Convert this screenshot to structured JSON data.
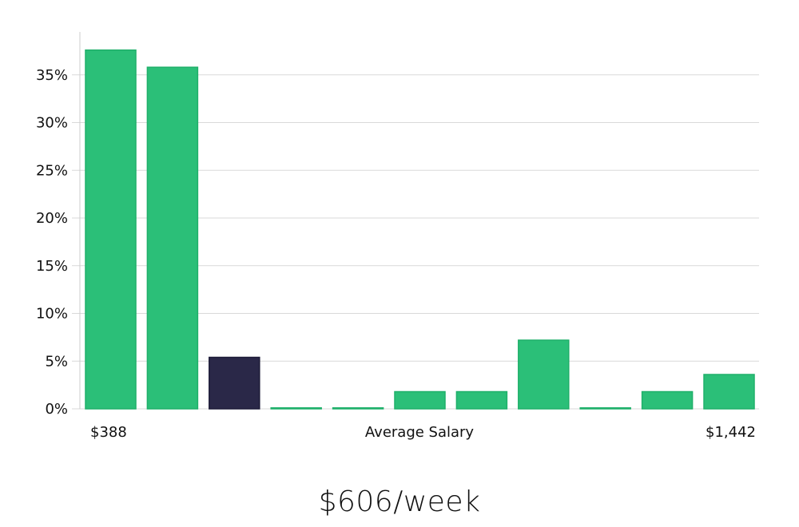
{
  "chart_data": {
    "type": "bar",
    "series": [
      {
        "values": [
          37.6,
          35.8,
          5.4,
          0.1,
          0.1,
          1.8,
          1.8,
          7.2,
          0.1,
          1.8,
          3.6
        ]
      }
    ],
    "highlight_index": 2,
    "xlabel": "Average Salary",
    "x_min_label": "$388",
    "x_max_label": "$1,442",
    "ylim": [
      0,
      39.5
    ],
    "yticks": [
      0,
      5,
      10,
      15,
      20,
      25,
      30,
      35
    ],
    "ytick_labels": [
      "0%",
      "5%",
      "10%",
      "15%",
      "20%",
      "25%",
      "30%",
      "35%"
    ],
    "grid": true,
    "colors": {
      "bar": "#2bbf78",
      "bar_edge": "#1fb06a",
      "highlight": "#2a2848",
      "grid": "#d9d9d9",
      "axis": "#cccccc"
    }
  },
  "headline": "$606/week"
}
